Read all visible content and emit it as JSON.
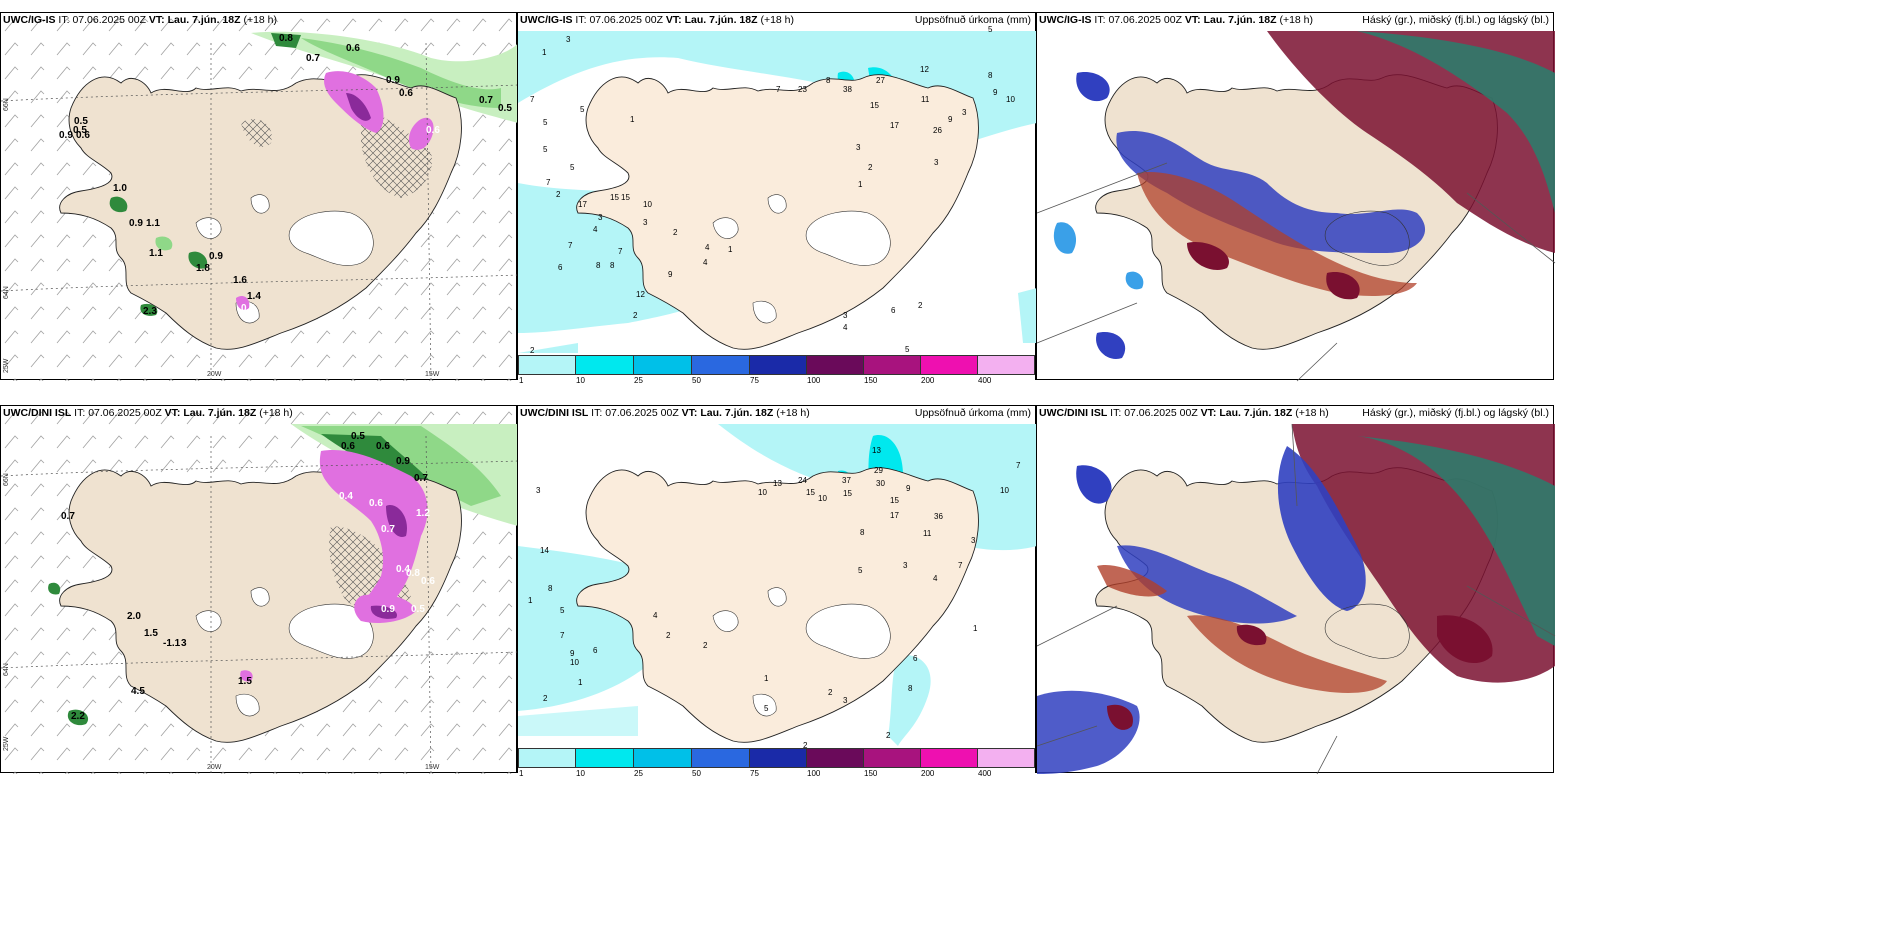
{
  "panels": {
    "p1": {
      "model": "UWC/IG-IS",
      "it_label": "IT:",
      "it": "07.06.2025 00Z",
      "vt_label": "VT:",
      "vt": "Lau. 7.jún. 18Z",
      "lead": "(+18 h)",
      "right_title": ""
    },
    "p2": {
      "model": "UWC/IG-IS",
      "it_label": "IT:",
      "it": "07.06.2025 00Z",
      "vt_label": "VT:",
      "vt": "Lau. 7.jún. 18Z",
      "lead": "(+18 h)",
      "right_title": "Uppsöfnuð úrkoma (mm)"
    },
    "p3": {
      "model": "UWC/IG-IS",
      "it_label": "IT:",
      "it": "07.06.2025 00Z",
      "vt_label": "VT:",
      "vt": "Lau. 7.jún. 18Z",
      "lead": "(+18 h)",
      "right_title": "Háský (gr.), miðský (fj.bl.) og lágský (bl.)"
    },
    "p4": {
      "model": "UWC/DINI ISL",
      "it_label": "IT:",
      "it": "07.06.2025 00Z",
      "vt_label": "VT:",
      "vt": "Lau. 7.jún. 18Z",
      "lead": "(+18 h)",
      "right_title": ""
    },
    "p5": {
      "model": "UWC/DINI ISL",
      "it_label": "IT:",
      "it": "07.06.2025 00Z",
      "vt_label": "VT:",
      "vt": "Lau. 7.jún. 18Z",
      "lead": "(+18 h)",
      "right_title": "Uppsöfnuð úrkoma (mm)"
    },
    "p6": {
      "model": "UWC/DINI ISL",
      "it_label": "IT:",
      "it": "07.06.2025 00Z",
      "vt_label": "VT:",
      "vt": "Lau. 7.jún. 18Z",
      "lead": "(+18 h)",
      "right_title": "Háský (gr.), miðský (fj.bl.) og lágský (bl.)"
    }
  },
  "axes": {
    "lat_66": "66N",
    "lat_64": "64N",
    "lon_25": "25W",
    "lon_20": "20W",
    "lon_15": "15W"
  },
  "colorbar": {
    "ticks": [
      "1",
      "10",
      "25",
      "50",
      "75",
      "100",
      "150",
      "200",
      "400"
    ],
    "colors": [
      "#b4f5f7",
      "#00e8ee",
      "#00c0e8",
      "#2a68e0",
      "#1a2aa8",
      "#6a0a5a",
      "#a8137e",
      "#ee10b0",
      "#f3b0f0"
    ]
  },
  "colors": {
    "land": "#efe2d0",
    "precip_light": "#b4f5f7",
    "green_light": "#c8efc0",
    "green_mid": "#8fd888",
    "green_dark": "#2f8a3c",
    "pink": "#e070e0",
    "purple": "#8a2a9a",
    "cloud_high": "#7a1030",
    "cloud_mid": "#3040c0",
    "cloud_low": "#2f7a6a"
  },
  "p1_labels": [
    "0.8",
    "0.7",
    "0.6",
    "0.9",
    "0.6",
    "0.5",
    "0.7",
    "0.5",
    "0.5",
    "0.9",
    "0.6",
    "1.0",
    "0.9",
    "1.1",
    "1.1",
    "0.9",
    "1.8",
    "1.6",
    "1.4",
    "2.3",
    "0.6",
    "0.8"
  ],
  "p4_labels": [
    "0.5",
    "0.6",
    "0.6",
    "0.9",
    "0.7",
    "0.4",
    "0.6",
    "0.7",
    "0.4",
    "1.2",
    "0.8",
    "0.6",
    "0.9",
    "0.5",
    "0.7",
    "2.0",
    "1.5",
    "-1.1",
    "4.5",
    "2.2",
    "1.5",
    "3"
  ],
  "p2_nums": [
    "3",
    "1",
    "7",
    "5",
    "5",
    "1",
    "5",
    "7",
    "2",
    "17",
    "15",
    "15",
    "10",
    "7",
    "2",
    "3",
    "3",
    "4",
    "7",
    "6",
    "8",
    "8",
    "9",
    "4",
    "12",
    "2",
    "5",
    "23",
    "7",
    "8",
    "38",
    "27",
    "15",
    "17",
    "12",
    "26",
    "11",
    "9",
    "3",
    "2",
    "1",
    "3",
    "6",
    "4",
    "2",
    "3",
    "1",
    "4",
    "5",
    "8",
    "9",
    "10",
    "3",
    "5",
    "2"
  ],
  "p5_nums": [
    "3",
    "14",
    "8",
    "5",
    "1",
    "7",
    "9",
    "10",
    "6",
    "1",
    "2",
    "4",
    "2",
    "13",
    "10",
    "24",
    "15",
    "10",
    "37",
    "15",
    "29",
    "30",
    "13",
    "15",
    "17",
    "36",
    "11",
    "9",
    "8",
    "5",
    "3",
    "7",
    "3",
    "4",
    "1",
    "2",
    "3",
    "8",
    "6",
    "2",
    "7",
    "10",
    "2",
    "1",
    "5",
    "2"
  ]
}
